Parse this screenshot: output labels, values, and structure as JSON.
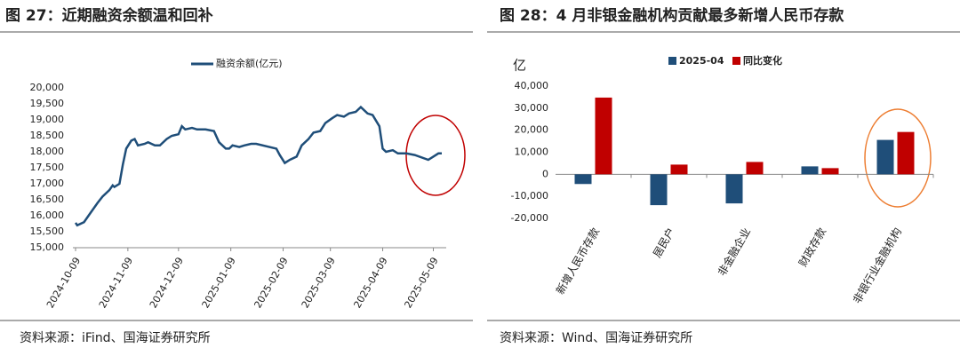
{
  "chart_data": [
    {
      "type": "line",
      "title": "图 27：近期融资余额温和回补",
      "source": "资料来源：iFind、国海证券研究所",
      "x": [
        "2024-10-09",
        "2024-10-10",
        "2024-10-14",
        "2024-10-18",
        "2024-10-22",
        "2024-10-25",
        "2024-10-29",
        "2024-10-31",
        "2024-11-01",
        "2024-11-04",
        "2024-11-06",
        "2024-11-08",
        "2024-11-11",
        "2024-11-13",
        "2024-11-15",
        "2024-11-19",
        "2024-11-21",
        "2024-11-25",
        "2024-11-28",
        "2024-12-02",
        "2024-12-05",
        "2024-12-09",
        "2024-12-11",
        "2024-12-13",
        "2024-12-17",
        "2024-12-20",
        "2024-12-25",
        "2024-12-30",
        "2025-01-02",
        "2025-01-06",
        "2025-01-08",
        "2025-01-10",
        "2025-01-14",
        "2025-01-17",
        "2025-01-21",
        "2025-01-24",
        "2025-02-05",
        "2025-02-07",
        "2025-02-10",
        "2025-02-13",
        "2025-02-17",
        "2025-02-20",
        "2025-02-24",
        "2025-02-27",
        "2025-03-03",
        "2025-03-06",
        "2025-03-10",
        "2025-03-13",
        "2025-03-17",
        "2025-03-20",
        "2025-03-24",
        "2025-03-27",
        "2025-03-31",
        "2025-04-03",
        "2025-04-07",
        "2025-04-09",
        "2025-04-11",
        "2025-04-15",
        "2025-04-18",
        "2025-04-23",
        "2025-04-28",
        "2025-05-06",
        "2025-05-09",
        "2025-05-12",
        "2025-05-14"
      ],
      "series": [
        {
          "name": "融资余额(亿元)",
          "color": "#1f4e79",
          "values": [
            15780,
            15700,
            15800,
            16100,
            16400,
            16600,
            16800,
            16950,
            16900,
            17000,
            17600,
            18100,
            18350,
            18400,
            18200,
            18250,
            18300,
            18200,
            18200,
            18400,
            18500,
            18550,
            18800,
            18700,
            18750,
            18700,
            18700,
            18650,
            18300,
            18100,
            18100,
            18200,
            18150,
            18200,
            18250,
            18250,
            18100,
            17900,
            17650,
            17750,
            17850,
            18200,
            18400,
            18600,
            18650,
            18900,
            19050,
            19150,
            19100,
            19200,
            19250,
            19400,
            19200,
            19150,
            18800,
            18100,
            18000,
            18050,
            17950,
            17950,
            17900,
            17750,
            17850,
            17950,
            17950
          ]
        }
      ],
      "xlim": [
        "2024-10-09",
        "2025-05-14"
      ],
      "xticks": [
        "2024-10-09",
        "2024-11-09",
        "2024-12-09",
        "2025-01-09",
        "2025-02-09",
        "2025-03-09",
        "2025-04-09",
        "2025-05-09"
      ],
      "ylim": [
        15000,
        20000
      ],
      "yticks": [
        {
          "value": 15000,
          "label": "15,000"
        },
        {
          "value": 15500,
          "label": "15,500"
        },
        {
          "value": 16000,
          "label": "16,000"
        },
        {
          "value": 16500,
          "label": "16,500"
        },
        {
          "value": 17000,
          "label": "17,000"
        },
        {
          "value": 17500,
          "label": "17,500"
        },
        {
          "value": 18000,
          "label": "18,000"
        },
        {
          "value": 18500,
          "label": "18,500"
        },
        {
          "value": 19000,
          "label": "19,000"
        },
        {
          "value": 19500,
          "label": "19,500"
        },
        {
          "value": 20000,
          "label": "20,000"
        }
      ],
      "legend": "top"
    },
    {
      "type": "bar",
      "title": "图 28：4 月非银金融机构贡献最多新增人民币存款",
      "source": "资料来源：Wind、国海证券研究所",
      "y_label": "亿",
      "categories": [
        "新增人民币存款",
        "居民户",
        "非金融企业",
        "财政存款",
        "非银行业金融机构"
      ],
      "series": [
        {
          "name": "2025-04",
          "color": "#1f4e79",
          "values": [
            -4400,
            -14000,
            -13200,
            3600,
            15600
          ]
        },
        {
          "name": "同比变化",
          "color": "#c00000",
          "values": [
            34800,
            4400,
            5600,
            2800,
            19200
          ]
        }
      ],
      "ylim": [
        -20000,
        40000
      ],
      "yticks": [
        {
          "value": -20000,
          "label": "-20,000"
        },
        {
          "value": -10000,
          "label": "-10,000"
        },
        0,
        {
          "value": 10000,
          "label": "10,000"
        },
        {
          "value": 20000,
          "label": "20,000"
        },
        {
          "value": 30000,
          "label": "30,000"
        },
        {
          "value": 40000,
          "label": "40,000"
        }
      ],
      "legend": "top"
    }
  ]
}
